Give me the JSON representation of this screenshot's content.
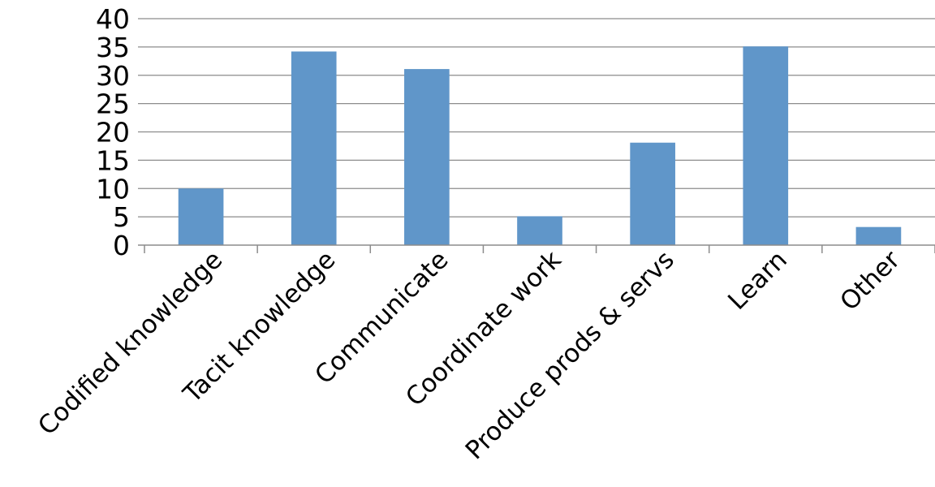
{
  "chart_data": {
    "type": "bar",
    "categories": [
      "Codified knowledge",
      "Tacit knowledge",
      "Communicate",
      "Coordinate work",
      "Produce prods & servs",
      "Learn",
      "Other"
    ],
    "values": [
      10,
      34.2,
      31.1,
      5.1,
      18.1,
      35.1,
      3.2
    ],
    "y_ticks": [
      "0",
      "5",
      "10",
      "15",
      "20",
      "25",
      "30",
      "35",
      "40"
    ],
    "ylim": [
      0,
      40
    ],
    "grid": true,
    "legend": "none",
    "colors": {
      "bar": "#6096c9",
      "grid": "#8c8c8c",
      "axis": "#8c8c8c"
    }
  }
}
